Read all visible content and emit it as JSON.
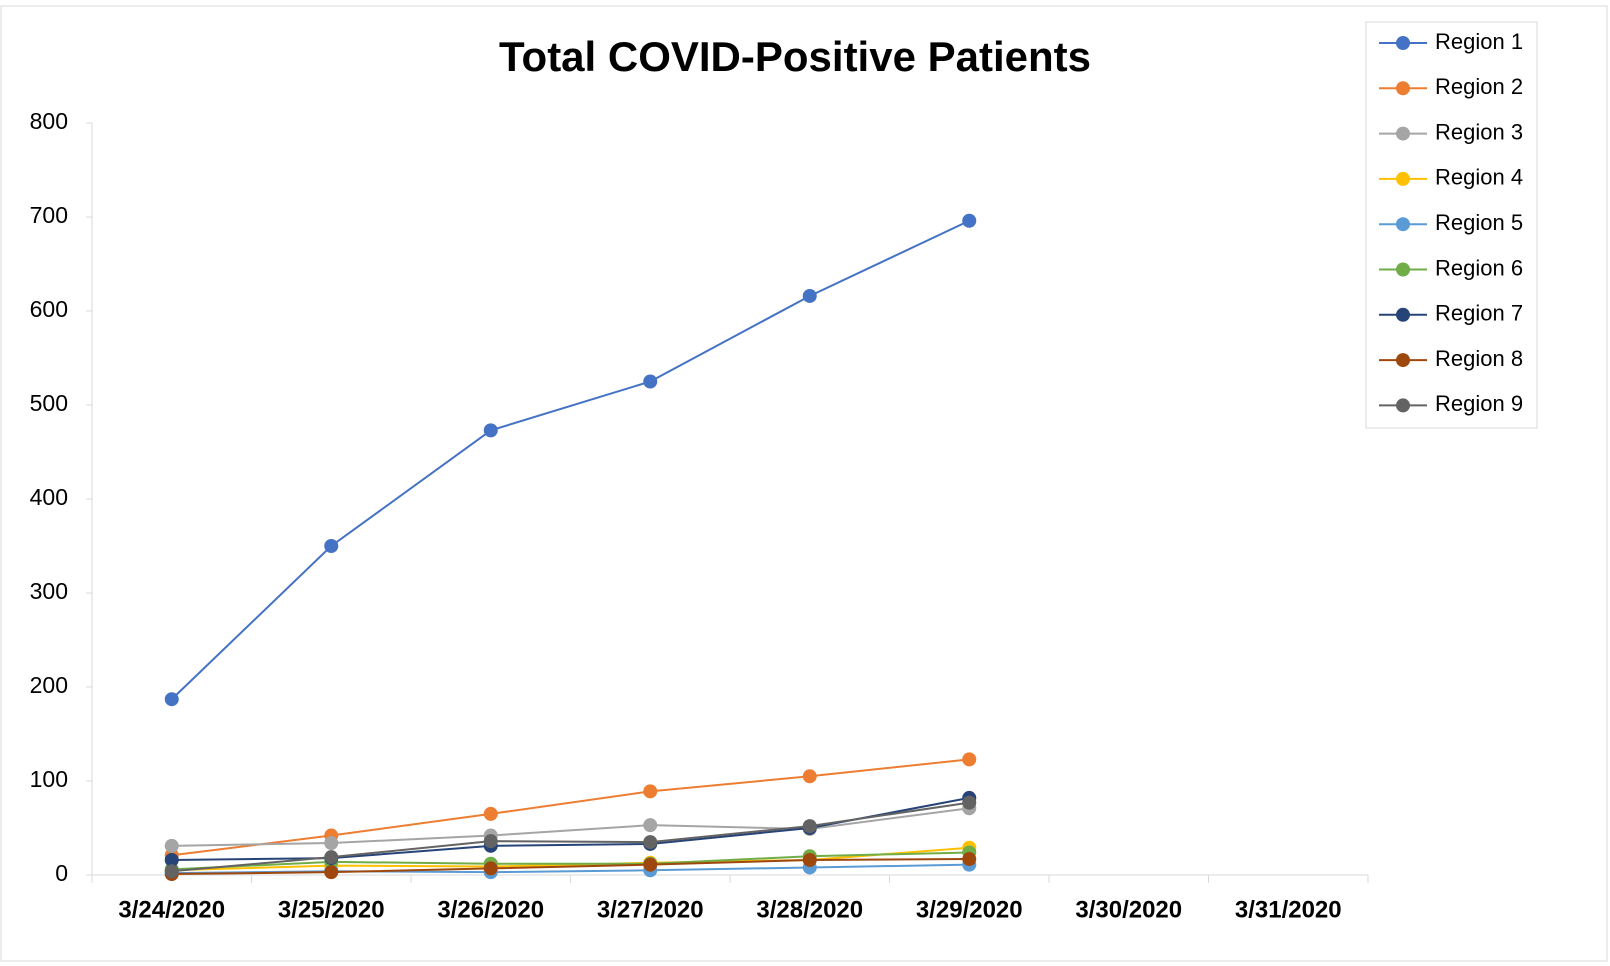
{
  "chart_data": {
    "type": "line",
    "title": "Total COVID-Positive Patients",
    "categories": [
      "3/24/2020",
      "3/25/2020",
      "3/26/2020",
      "3/27/2020",
      "3/28/2020",
      "3/29/2020",
      "3/30/2020",
      "3/31/2020"
    ],
    "series": [
      {
        "name": "Region 1",
        "color": "#4472c4",
        "values": [
          187,
          350,
          473,
          525,
          616,
          696,
          null,
          null
        ]
      },
      {
        "name": "Region 2",
        "color": "#ed7d31",
        "values": [
          21,
          42,
          65,
          89,
          105,
          123,
          null,
          null
        ]
      },
      {
        "name": "Region 3",
        "color": "#a5a5a5",
        "values": [
          31,
          34,
          42,
          53,
          49,
          71,
          null,
          null
        ]
      },
      {
        "name": "Region 4",
        "color": "#ffc000",
        "values": [
          5,
          10,
          9,
          13,
          16,
          29,
          null,
          null
        ]
      },
      {
        "name": "Region 5",
        "color": "#5b9bd5",
        "values": [
          2,
          4,
          3,
          5,
          8,
          11,
          null,
          null
        ]
      },
      {
        "name": "Region 6",
        "color": "#70ad47",
        "values": [
          6,
          14,
          12,
          12,
          20,
          24,
          null,
          null
        ]
      },
      {
        "name": "Region 7",
        "color": "#264478",
        "values": [
          16,
          18,
          31,
          33,
          50,
          82,
          null,
          null
        ]
      },
      {
        "name": "Region 8",
        "color": "#9e480e",
        "values": [
          1,
          3,
          7,
          11,
          16,
          17,
          null,
          null
        ]
      },
      {
        "name": "Region 9",
        "color": "#636363",
        "values": [
          4,
          19,
          36,
          35,
          52,
          77,
          null,
          null
        ]
      }
    ],
    "ylim": [
      0,
      800
    ],
    "yticks": [
      0,
      100,
      200,
      300,
      400,
      500,
      600,
      700,
      800
    ],
    "legend": "right"
  }
}
